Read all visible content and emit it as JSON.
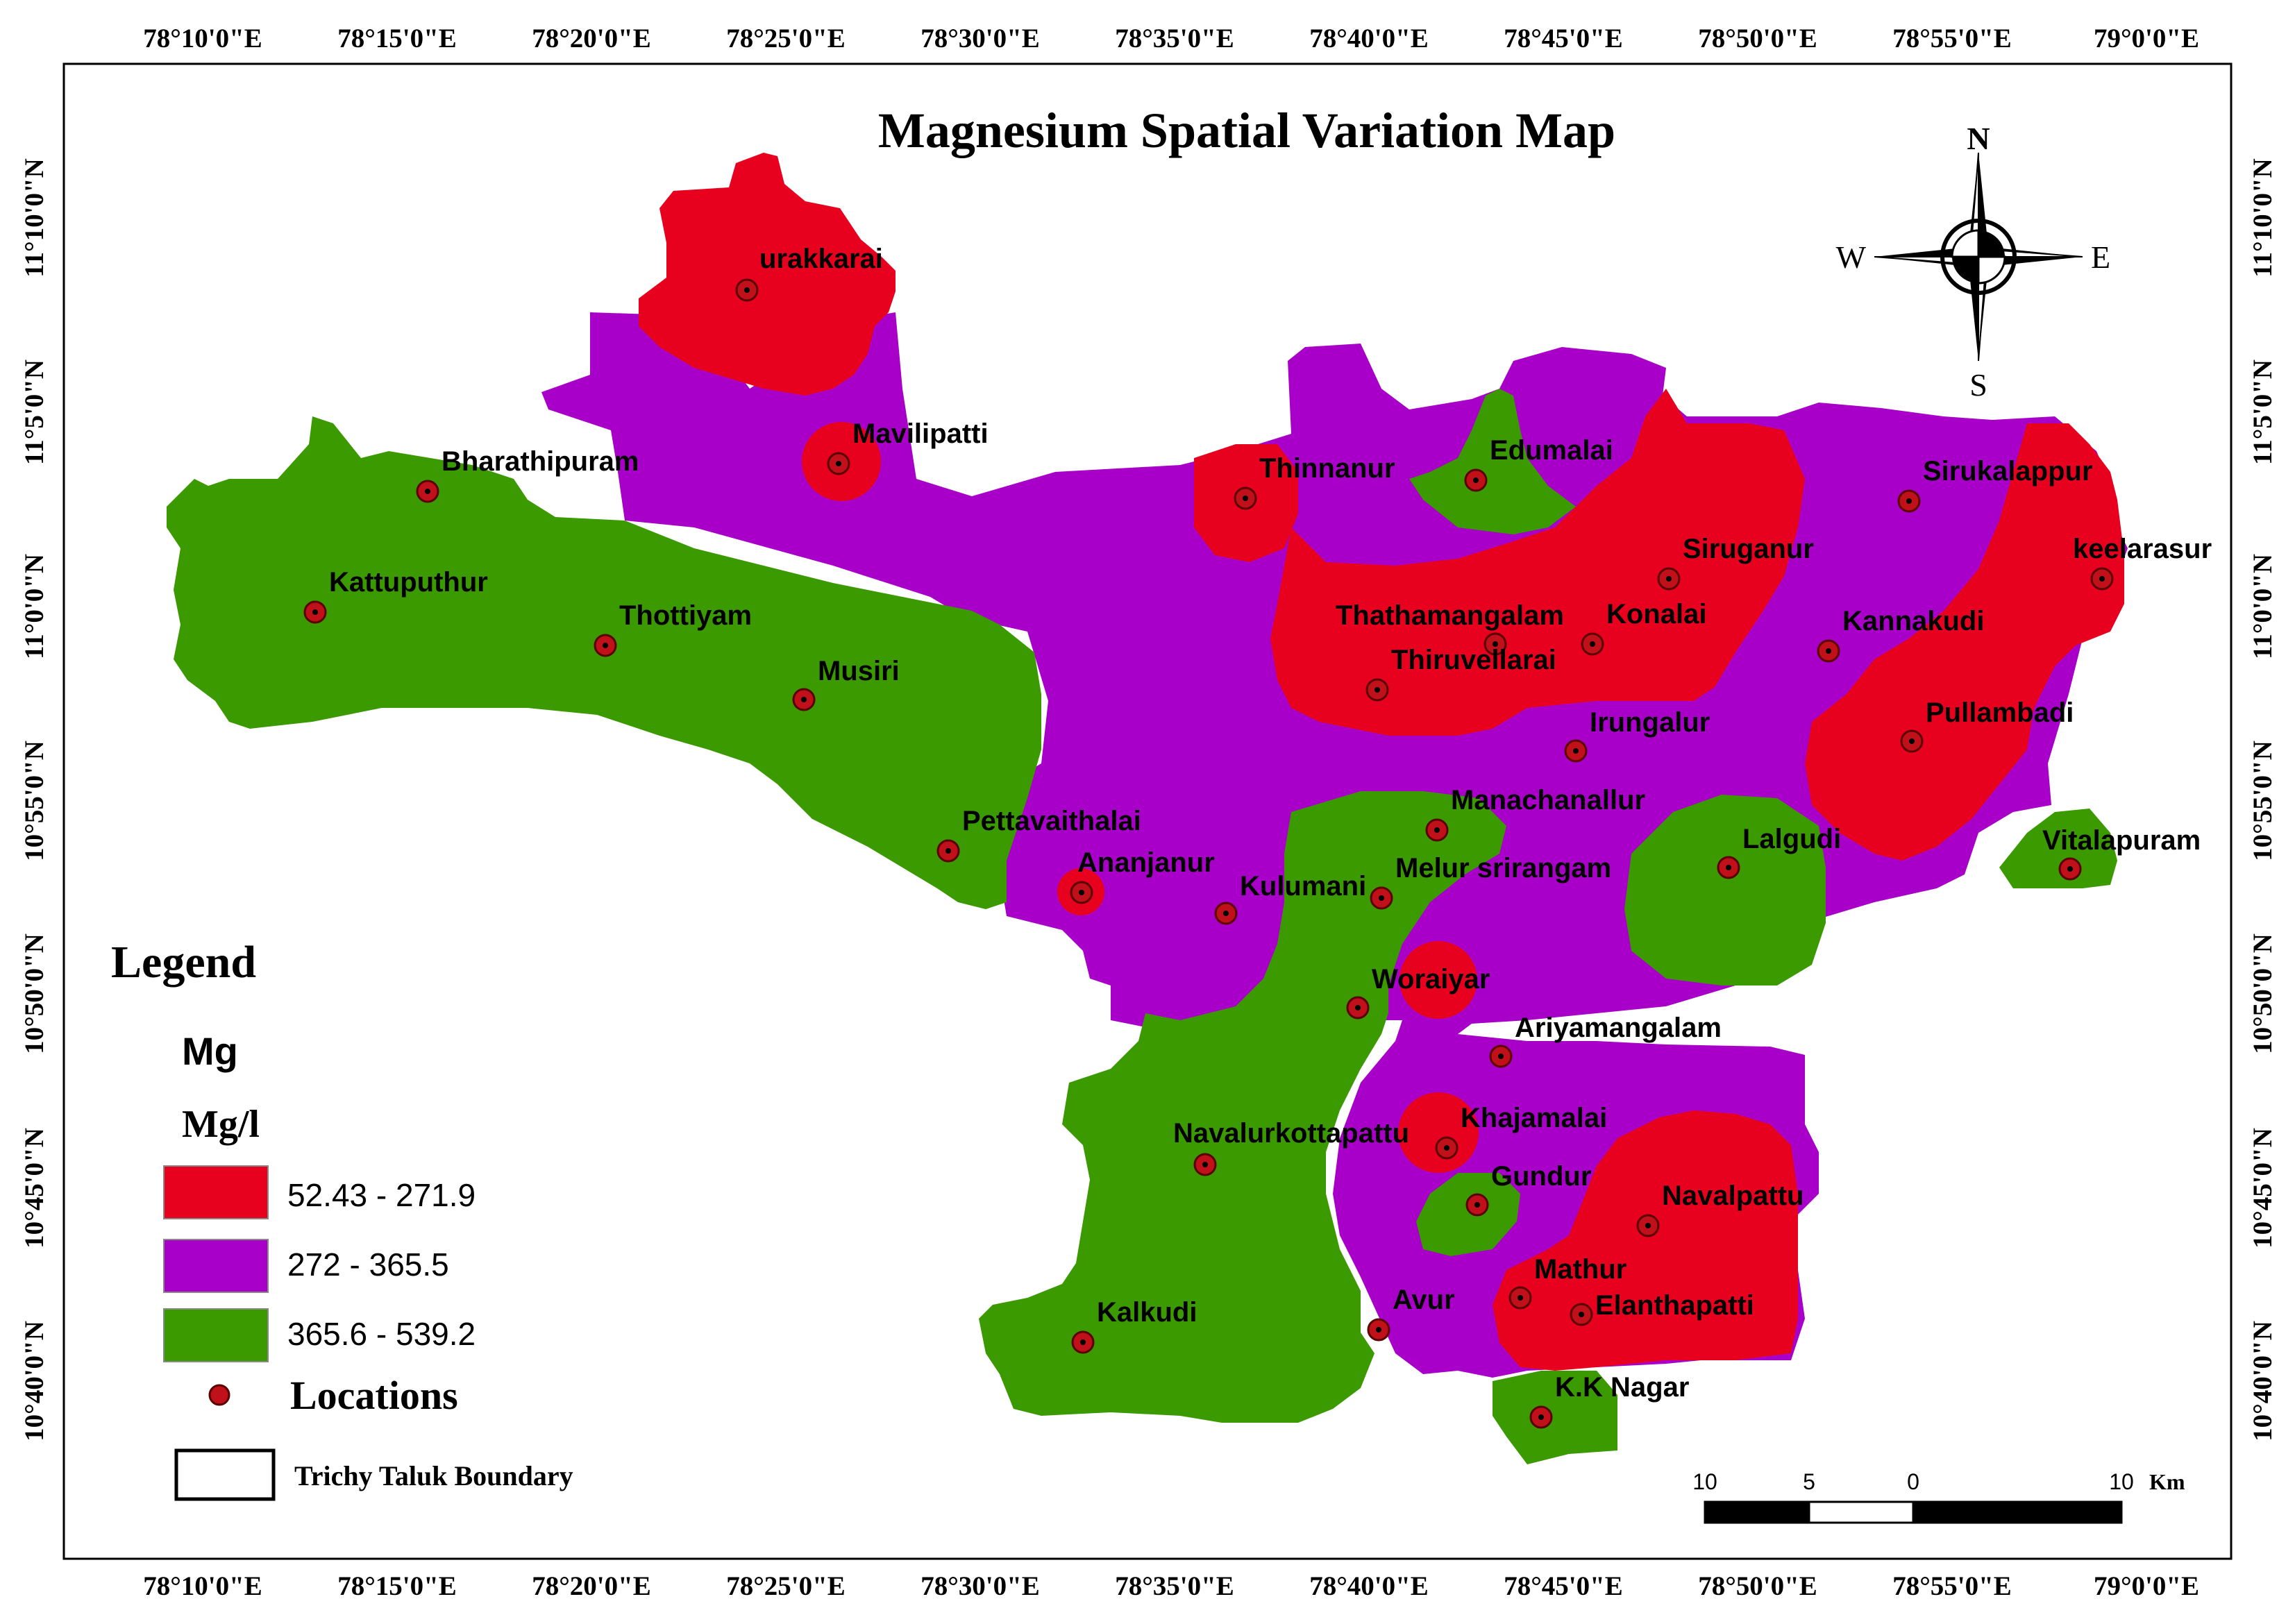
{
  "title": "Magnesium Spatial Variation Map",
  "colors": {
    "low": "#e8001f",
    "mid": "#a800c8",
    "high": "#3a9a00",
    "location_fill": "#c0101a",
    "frame": "#000000",
    "background": "#ffffff"
  },
  "ticks": {
    "longitude": [
      "78°10'0\"E",
      "78°15'0\"E",
      "78°20'0\"E",
      "78°25'0\"E",
      "78°30'0\"E",
      "78°35'0\"E",
      "78°40'0\"E",
      "78°45'0\"E",
      "78°50'0\"E",
      "78°55'0\"E",
      "79°0'0\"E"
    ],
    "latitude": [
      "11°10'0\"N",
      "11°5'0\"N",
      "11°0'0\"N",
      "10°55'0\"N",
      "10°50'0\"N",
      "10°45'0\"N",
      "10°40'0\"N"
    ]
  },
  "compass": {
    "n": "N",
    "s": "S",
    "e": "E",
    "w": "W",
    "icon": "north-arrow-compass-icon"
  },
  "legend": {
    "heading": "Legend",
    "parameter": "Mg",
    "unit": "Mg/l",
    "classes": [
      {
        "label": "52.43 - 271.9",
        "color": "#e8001f"
      },
      {
        "label": "272 - 365.5",
        "color": "#a800c8"
      },
      {
        "label": "365.6 - 539.2",
        "color": "#3a9a00"
      }
    ],
    "locations_label": "Locations",
    "boundary_label": "Trichy Taluk Boundary"
  },
  "scale_bar": {
    "labels": [
      "10",
      "5",
      "0",
      "10"
    ],
    "unit": "Km"
  },
  "locations": [
    {
      "name": "urakkarai",
      "class": "low"
    },
    {
      "name": "Mavilipatti",
      "class": "low"
    },
    {
      "name": "Bharathipuram",
      "class": "high"
    },
    {
      "name": "Kattuputhur",
      "class": "high"
    },
    {
      "name": "Thottiyam",
      "class": "high"
    },
    {
      "name": "Musiri",
      "class": "high"
    },
    {
      "name": "Thinnanur",
      "class": "low"
    },
    {
      "name": "Edumalai",
      "class": "high"
    },
    {
      "name": "Siruganur",
      "class": "low"
    },
    {
      "name": "Sirukalappur",
      "class": "mid"
    },
    {
      "name": "keelarasur",
      "class": "low"
    },
    {
      "name": "Thathamangalam",
      "class": "low"
    },
    {
      "name": "Konalai",
      "class": "low"
    },
    {
      "name": "Kannakudi",
      "class": "mid"
    },
    {
      "name": "Thiruvellarai",
      "class": "low"
    },
    {
      "name": "Irungalur",
      "class": "mid"
    },
    {
      "name": "Pullambadi",
      "class": "low"
    },
    {
      "name": "Pettavaithalai",
      "class": "high"
    },
    {
      "name": "Ananjanur",
      "class": "low"
    },
    {
      "name": "Kulumani",
      "class": "mid"
    },
    {
      "name": "Manachanallur",
      "class": "high"
    },
    {
      "name": "Melur srirangam",
      "class": "mid"
    },
    {
      "name": "Lalgudi",
      "class": "high"
    },
    {
      "name": "Vitalapuram",
      "class": "high"
    },
    {
      "name": "Woraiyar",
      "class": "low"
    },
    {
      "name": "Ariyamangalam",
      "class": "mid"
    },
    {
      "name": "Navalurkottapattu",
      "class": "high"
    },
    {
      "name": "Khajamalai",
      "class": "low"
    },
    {
      "name": "Gundur",
      "class": "high"
    },
    {
      "name": "Navalpattu",
      "class": "low"
    },
    {
      "name": "Kalkudi",
      "class": "high"
    },
    {
      "name": "Avur",
      "class": "high"
    },
    {
      "name": "Mathur",
      "class": "low"
    },
    {
      "name": "Elanthapatti",
      "class": "low"
    },
    {
      "name": "K.K Nagar",
      "class": "high"
    }
  ]
}
